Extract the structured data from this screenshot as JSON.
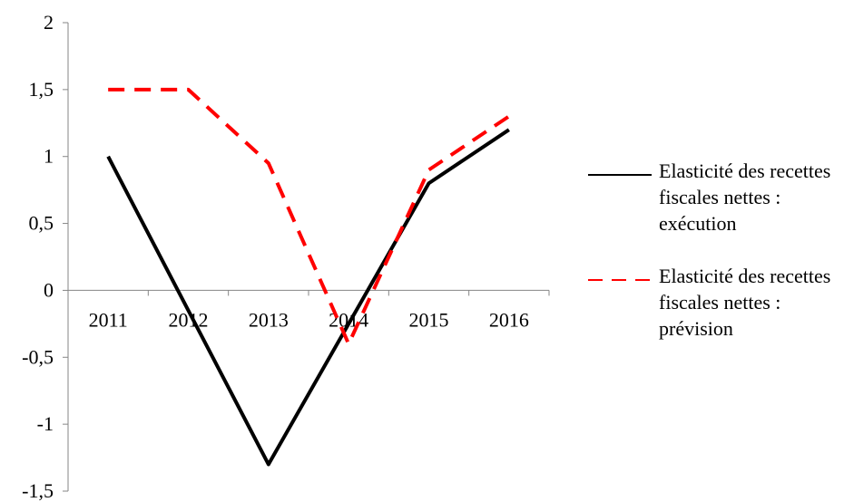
{
  "chart_data": {
    "type": "line",
    "categories": [
      "2011",
      "2012",
      "2013",
      "2014",
      "2015",
      "2016"
    ],
    "series": [
      {
        "name": "Elasticité des recettes fiscales nettes : exécution",
        "values": [
          1,
          null,
          -1.3,
          null,
          0.8,
          1.2
        ],
        "color": "#000000",
        "style": "solid"
      },
      {
        "name": "Elasticité des recettes fiscales nettes : prévision",
        "values": [
          1.5,
          1.5,
          0.95,
          -0.4,
          0.9,
          1.3
        ],
        "color": "#ff0000",
        "style": "dashed"
      }
    ],
    "ylim": [
      -1.5,
      2
    ],
    "yticks": [
      "2",
      "1,5",
      "1",
      "0,5",
      "0",
      "-0,5",
      "-1",
      "-1,5"
    ],
    "title": "",
    "xlabel": "",
    "ylabel": "",
    "grid": false,
    "legend_position": "right"
  }
}
